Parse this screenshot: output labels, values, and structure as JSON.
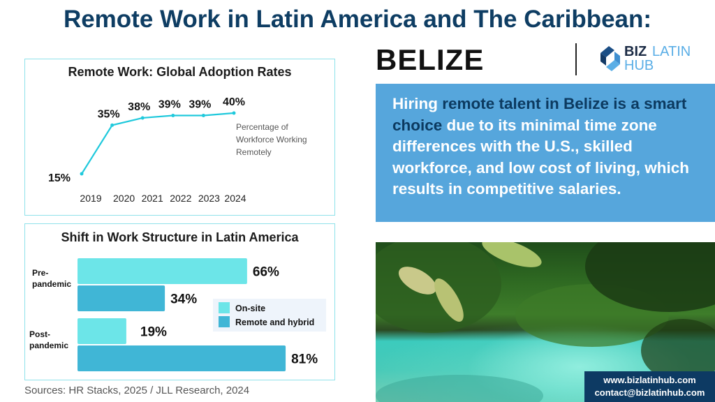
{
  "header": {
    "title": "Remote Work in Latin America and The Caribbean:",
    "country": "BELIZE"
  },
  "logo": {
    "text_biz": "BIZ",
    "text_latin": "LATIN",
    "text_hub": "HUB"
  },
  "colors": {
    "navy": "#0e3d63",
    "line": "#20c9dc",
    "onsite": "#6ce5e8",
    "remote": "#40b6d6",
    "box": "#56a6dc"
  },
  "chart_data": [
    {
      "type": "line",
      "title": "Remote Work: Global Adoption Rates",
      "x": [
        "2019",
        "2020",
        "2021",
        "2022",
        "2023",
        "2024"
      ],
      "values": [
        15,
        35,
        38,
        39,
        39,
        40
      ],
      "data_labels": [
        "15%",
        "35%",
        "38%",
        "39%",
        "39%",
        "40%"
      ],
      "annotation": [
        "Percentage of",
        "Workforce Working",
        "Remotely"
      ],
      "ylim": [
        15,
        40
      ],
      "grid": false
    },
    {
      "type": "bar",
      "orientation": "horizontal",
      "title": "Shift in Work Structure in Latin America",
      "categories": [
        [
          "Pre-",
          "pandemic"
        ],
        [
          "Post-",
          "pandemic"
        ]
      ],
      "series": [
        {
          "name": "On-site",
          "values": [
            66,
            19
          ],
          "labels": [
            "66%",
            "19%"
          ]
        },
        {
          "name": "Remote and hybrid",
          "values": [
            34,
            81
          ],
          "labels": [
            "34%",
            "81%"
          ]
        }
      ],
      "legend": "right",
      "xlim": [
        0,
        100
      ]
    }
  ],
  "sources": "Sources: HR Stacks, 2025 /  JLL Research, 2024",
  "textbox": {
    "seg1": "Hiring ",
    "seg2": "remote talent in Belize is a smart choice",
    "seg3": " due to its minimal time zone differences with the U.S., skilled workforce, and low cost of living, which results in competitive salaries."
  },
  "contact": {
    "website": "www.bizlatinhub.com",
    "email": "contact@bizlatinhub.com"
  }
}
